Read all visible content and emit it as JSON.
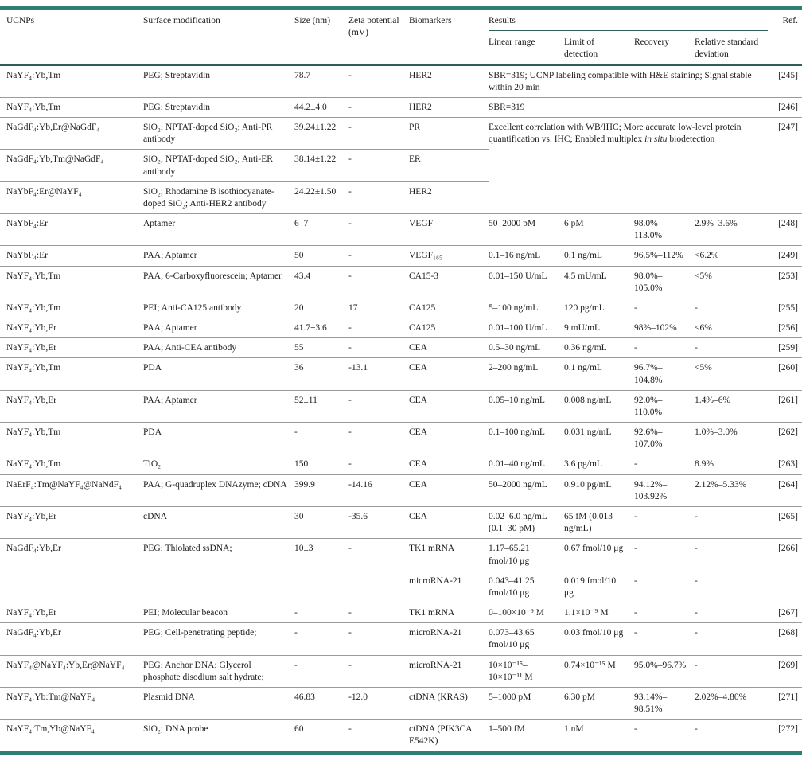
{
  "table": {
    "accent_color": "#2e7e74",
    "header": {
      "ucnps": "UCNPs",
      "surface": "Surface modification",
      "size": "Size (nm)",
      "zeta": "Zeta potential (mV)",
      "biomarkers": "Biomarkers",
      "results": "Results",
      "sub": [
        "Linear range",
        "Limit of detection",
        "Recovery",
        "Relative standard deviation"
      ],
      "ref": "Ref."
    },
    "rows": [
      [
        {
          "c": "ucnps",
          "t": "NaYF₄:Yb,Tm"
        },
        {
          "c": "surface",
          "t": "PEG; Streptavidin"
        },
        {
          "c": "size",
          "t": "78.7"
        },
        {
          "c": "zeta",
          "t": "-"
        },
        {
          "c": "biomarker",
          "t": "HER2"
        },
        {
          "c": "results",
          "cs": 4,
          "t": "SBR=319; UCNP labeling compatible with H&E staining; Signal stable within 20 min"
        },
        {
          "c": "ref",
          "t": "[245]"
        }
      ],
      [
        {
          "c": "ucnps",
          "t": "NaYF₄:Yb,Tm"
        },
        {
          "c": "surface",
          "t": "PEG; Streptavidin"
        },
        {
          "c": "size",
          "t": "44.2±4.0"
        },
        {
          "c": "zeta",
          "t": "-"
        },
        {
          "c": "biomarker",
          "t": "HER2"
        },
        {
          "c": "results",
          "cs": 4,
          "t": "SBR=319"
        },
        {
          "c": "ref",
          "t": "[246]"
        }
      ],
      [
        {
          "c": "ucnps",
          "t": "NaGdF₄:Yb,Er@NaGdF₄"
        },
        {
          "c": "surface",
          "t": "SiO₂; NPTAT-doped SiO₂; Anti-PR antibody"
        },
        {
          "c": "size",
          "t": "39.24±1.22"
        },
        {
          "c": "zeta",
          "t": "-"
        },
        {
          "c": "biomarker",
          "t": "PR"
        },
        {
          "c": "results",
          "cs": 4,
          "rs": 3,
          "parts": [
            {
              "t": "Excellent correlation with WB/IHC; More accurate low-level protein quantification vs. IHC; Enabled multiplex "
            },
            {
              "t": "in situ",
              "it": true
            },
            {
              "t": " biodetection"
            }
          ]
        },
        {
          "c": "ref",
          "rs": 3,
          "t": "[247]"
        }
      ],
      [
        {
          "c": "ucnps",
          "t": "NaGdF₄:Yb,Tm@NaGdF₄"
        },
        {
          "c": "surface",
          "t": "SiO₂; NPTAT-doped SiO₂; Anti-ER antibody"
        },
        {
          "c": "size",
          "t": "38.14±1.22"
        },
        {
          "c": "zeta",
          "t": "-"
        },
        {
          "c": "biomarker",
          "t": "ER"
        }
      ],
      [
        {
          "c": "ucnps",
          "t": "NaYbF₄:Er@NaYF₄"
        },
        {
          "c": "surface",
          "t": "SiO₂; Rhodamine B isothiocyanate-doped SiO₂; Anti-HER2 antibody"
        },
        {
          "c": "size",
          "t": "24.22±1.50"
        },
        {
          "c": "zeta",
          "t": "-"
        },
        {
          "c": "biomarker",
          "t": "HER2"
        }
      ],
      [
        {
          "c": "ucnps",
          "t": "NaYbF₄:Er"
        },
        {
          "c": "surface",
          "t": "Aptamer"
        },
        {
          "c": "size",
          "t": "6–7"
        },
        {
          "c": "zeta",
          "t": "-"
        },
        {
          "c": "biomarker",
          "t": "VEGF"
        },
        {
          "c": "linear",
          "t": "50–2000 pM"
        },
        {
          "c": "lod",
          "t": "6 pM"
        },
        {
          "c": "recovery",
          "t": "98.0%–113.0%"
        },
        {
          "c": "rsd",
          "t": "2.9%–3.6%"
        },
        {
          "c": "ref",
          "t": "[248]"
        }
      ],
      [
        {
          "c": "ucnps",
          "t": "NaYbF₄:Er"
        },
        {
          "c": "surface",
          "t": "PAA; Aptamer"
        },
        {
          "c": "size",
          "t": "50"
        },
        {
          "c": "zeta",
          "t": "-"
        },
        {
          "c": "biomarker",
          "t": "VEGF₁₆₅"
        },
        {
          "c": "linear",
          "t": "0.1–16 ng/mL"
        },
        {
          "c": "lod",
          "t": "0.1 ng/mL"
        },
        {
          "c": "recovery",
          "t": "96.5%–112%"
        },
        {
          "c": "rsd",
          "t": "<6.2%"
        },
        {
          "c": "ref",
          "t": "[249]"
        }
      ],
      [
        {
          "c": "ucnps",
          "t": "NaYF₄:Yb,Tm"
        },
        {
          "c": "surface",
          "t": "PAA; 6-Carboxyfluorescein; Aptamer"
        },
        {
          "c": "size",
          "t": "43.4"
        },
        {
          "c": "zeta",
          "t": "-"
        },
        {
          "c": "biomarker",
          "t": "CA15-3"
        },
        {
          "c": "linear",
          "t": "0.01–150 U/mL"
        },
        {
          "c": "lod",
          "t": "4.5 mU/mL"
        },
        {
          "c": "recovery",
          "t": "98.0%–105.0%"
        },
        {
          "c": "rsd",
          "t": "<5%"
        },
        {
          "c": "ref",
          "t": "[253]"
        }
      ],
      [
        {
          "c": "ucnps",
          "t": "NaYF₄:Yb,Tm"
        },
        {
          "c": "surface",
          "t": "PEI; Anti-CA125 antibody"
        },
        {
          "c": "size",
          "t": "20"
        },
        {
          "c": "zeta",
          "t": "17"
        },
        {
          "c": "biomarker",
          "t": "CA125"
        },
        {
          "c": "linear",
          "t": "5–100 ng/mL"
        },
        {
          "c": "lod",
          "t": "120 pg/mL"
        },
        {
          "c": "recovery",
          "t": "-"
        },
        {
          "c": "rsd",
          "t": "-"
        },
        {
          "c": "ref",
          "t": "[255]"
        }
      ],
      [
        {
          "c": "ucnps",
          "t": "NaYF₄:Yb,Er"
        },
        {
          "c": "surface",
          "t": "PAA; Aptamer"
        },
        {
          "c": "size",
          "t": "41.7±3.6"
        },
        {
          "c": "zeta",
          "t": "-"
        },
        {
          "c": "biomarker",
          "t": "CA125"
        },
        {
          "c": "linear",
          "t": "0.01–100 U/mL"
        },
        {
          "c": "lod",
          "t": "9 mU/mL"
        },
        {
          "c": "recovery",
          "t": "98%–102%"
        },
        {
          "c": "rsd",
          "t": "<6%"
        },
        {
          "c": "ref",
          "t": "[256]"
        }
      ],
      [
        {
          "c": "ucnps",
          "t": "NaYF₄:Yb,Er"
        },
        {
          "c": "surface",
          "t": "PAA; Anti-CEA antibody"
        },
        {
          "c": "size",
          "t": "55"
        },
        {
          "c": "zeta",
          "t": "-"
        },
        {
          "c": "biomarker",
          "t": "CEA"
        },
        {
          "c": "linear",
          "t": "0.5–30 ng/mL"
        },
        {
          "c": "lod",
          "t": "0.36 ng/mL"
        },
        {
          "c": "recovery",
          "t": "-"
        },
        {
          "c": "rsd",
          "t": "-"
        },
        {
          "c": "ref",
          "t": "[259]"
        }
      ],
      [
        {
          "c": "ucnps",
          "t": "NaYF₄:Yb,Tm"
        },
        {
          "c": "surface",
          "t": "PDA"
        },
        {
          "c": "size",
          "t": "36"
        },
        {
          "c": "zeta",
          "t": "-13.1"
        },
        {
          "c": "biomarker",
          "t": "CEA"
        },
        {
          "c": "linear",
          "t": "2–200 ng/mL"
        },
        {
          "c": "lod",
          "t": "0.1 ng/mL"
        },
        {
          "c": "recovery",
          "t": "96.7%–104.8%"
        },
        {
          "c": "rsd",
          "t": "<5%"
        },
        {
          "c": "ref",
          "t": "[260]"
        }
      ],
      [
        {
          "c": "ucnps",
          "t": "NaYF₄:Yb,Er"
        },
        {
          "c": "surface",
          "t": "PAA; Aptamer"
        },
        {
          "c": "size",
          "t": "52±11"
        },
        {
          "c": "zeta",
          "t": "-"
        },
        {
          "c": "biomarker",
          "t": "CEA"
        },
        {
          "c": "linear",
          "t": "0.05–10 ng/mL"
        },
        {
          "c": "lod",
          "t": "0.008 ng/mL"
        },
        {
          "c": "recovery",
          "t": "92.0%–110.0%"
        },
        {
          "c": "rsd",
          "t": "1.4%–6%"
        },
        {
          "c": "ref",
          "t": "[261]"
        }
      ],
      [
        {
          "c": "ucnps",
          "t": "NaYF₄:Yb,Tm"
        },
        {
          "c": "surface",
          "t": "PDA"
        },
        {
          "c": "size",
          "t": "-"
        },
        {
          "c": "zeta",
          "t": "-"
        },
        {
          "c": "biomarker",
          "t": "CEA"
        },
        {
          "c": "linear",
          "t": "0.1–100 ng/mL"
        },
        {
          "c": "lod",
          "t": "0.031 ng/mL"
        },
        {
          "c": "recovery",
          "t": "92.6%–107.0%"
        },
        {
          "c": "rsd",
          "t": "1.0%–3.0%"
        },
        {
          "c": "ref",
          "t": "[262]"
        }
      ],
      [
        {
          "c": "ucnps",
          "t": "NaYF₄:Yb,Tm"
        },
        {
          "c": "surface",
          "t": "TiO₂"
        },
        {
          "c": "size",
          "t": "150"
        },
        {
          "c": "zeta",
          "t": "-"
        },
        {
          "c": "biomarker",
          "t": "CEA"
        },
        {
          "c": "linear",
          "t": "0.01–40 ng/mL"
        },
        {
          "c": "lod",
          "t": "3.6 pg/mL"
        },
        {
          "c": "recovery",
          "t": "-"
        },
        {
          "c": "rsd",
          "t": "8.9%"
        },
        {
          "c": "ref",
          "t": "[263]"
        }
      ],
      [
        {
          "c": "ucnps",
          "t": "NaErF₄:Tm@NaYF₄@NaNdF₄"
        },
        {
          "c": "surface",
          "t": "PAA; G-quadruplex DNAzyme; cDNA"
        },
        {
          "c": "size",
          "t": "399.9"
        },
        {
          "c": "zeta",
          "t": "-14.16"
        },
        {
          "c": "biomarker",
          "t": "CEA"
        },
        {
          "c": "linear",
          "t": "50–2000 ng/mL"
        },
        {
          "c": "lod",
          "t": "0.910 pg/mL"
        },
        {
          "c": "recovery",
          "t": "94.12%–103.92%"
        },
        {
          "c": "rsd",
          "t": "2.12%–5.33%"
        },
        {
          "c": "ref",
          "t": "[264]"
        }
      ],
      [
        {
          "c": "ucnps",
          "t": "NaYF₄:Yb,Er"
        },
        {
          "c": "surface",
          "t": "cDNA"
        },
        {
          "c": "size",
          "t": "30"
        },
        {
          "c": "zeta",
          "t": "-35.6"
        },
        {
          "c": "biomarker",
          "t": "CEA"
        },
        {
          "c": "linear",
          "t": "0.02–6.0 ng/mL (0.1–30 pM)"
        },
        {
          "c": "lod",
          "t": "65 fM (0.013 ng/mL)"
        },
        {
          "c": "recovery",
          "t": "-"
        },
        {
          "c": "rsd",
          "t": "-"
        },
        {
          "c": "ref",
          "t": "[265]"
        }
      ],
      [
        {
          "c": "ucnps",
          "rs": 2,
          "t": "NaGdF₄:Yb,Er"
        },
        {
          "c": "surface",
          "rs": 2,
          "t": "PEG; Thiolated ssDNA;"
        },
        {
          "c": "size",
          "rs": 2,
          "t": "10±3"
        },
        {
          "c": "zeta",
          "rs": 2,
          "t": "-"
        },
        {
          "c": "biomarker",
          "t": "TK1 mRNA"
        },
        {
          "c": "linear",
          "t": "1.17–65.21 fmol/10 μg"
        },
        {
          "c": "lod",
          "t": "0.67 fmol/10 μg"
        },
        {
          "c": "recovery",
          "t": "-"
        },
        {
          "c": "rsd",
          "t": "-"
        },
        {
          "c": "ref",
          "rs": 2,
          "t": "[266]"
        }
      ],
      [
        {
          "c": "biomarker",
          "t": "microRNA-21"
        },
        {
          "c": "linear",
          "t": "0.043–41.25 fmol/10 μg"
        },
        {
          "c": "lod",
          "t": "0.019 fmol/10 μg"
        },
        {
          "c": "recovery",
          "t": "-"
        },
        {
          "c": "rsd",
          "t": "-"
        }
      ],
      [
        {
          "c": "ucnps",
          "t": "NaYF₄:Yb,Er"
        },
        {
          "c": "surface",
          "t": "PEI; Molecular beacon"
        },
        {
          "c": "size",
          "t": "-"
        },
        {
          "c": "zeta",
          "t": "-"
        },
        {
          "c": "biomarker",
          "t": "TK1 mRNA"
        },
        {
          "c": "linear",
          "t": "0–100×10⁻⁹ M"
        },
        {
          "c": "lod",
          "t": "1.1×10⁻⁹ M"
        },
        {
          "c": "recovery",
          "t": "-"
        },
        {
          "c": "rsd",
          "t": "-"
        },
        {
          "c": "ref",
          "t": "[267]"
        }
      ],
      [
        {
          "c": "ucnps",
          "t": "NaGdF₄:Yb,Er"
        },
        {
          "c": "surface",
          "t": "PEG; Cell-penetrating peptide;"
        },
        {
          "c": "size",
          "t": "-"
        },
        {
          "c": "zeta",
          "t": "-"
        },
        {
          "c": "biomarker",
          "t": "microRNA-21"
        },
        {
          "c": "linear",
          "t": "0.073–43.65 fmol/10 μg"
        },
        {
          "c": "lod",
          "t": "0.03 fmol/10 μg"
        },
        {
          "c": "recovery",
          "t": "-"
        },
        {
          "c": "rsd",
          "t": "-"
        },
        {
          "c": "ref",
          "t": "[268]"
        }
      ],
      [
        {
          "c": "ucnps",
          "t": "NaYF₄@NaYF₄:Yb,Er@NaYF₄"
        },
        {
          "c": "surface",
          "t": "PEG; Anchor DNA; Glycerol phosphate disodium salt hydrate;"
        },
        {
          "c": "size",
          "t": "-"
        },
        {
          "c": "zeta",
          "t": "-"
        },
        {
          "c": "biomarker",
          "t": "microRNA-21"
        },
        {
          "c": "linear",
          "t": "10×10⁻¹⁵–10×10⁻¹¹ M"
        },
        {
          "c": "lod",
          "t": "0.74×10⁻¹⁵ M"
        },
        {
          "c": "recovery",
          "t": "95.0%–96.7%"
        },
        {
          "c": "rsd",
          "t": "-"
        },
        {
          "c": "ref",
          "t": "[269]"
        }
      ],
      [
        {
          "c": "ucnps",
          "t": "NaYF₄:Yb:Tm@NaYF₄"
        },
        {
          "c": "surface",
          "t": "Plasmid DNA"
        },
        {
          "c": "size",
          "t": "46.83"
        },
        {
          "c": "zeta",
          "t": "-12.0"
        },
        {
          "c": "biomarker",
          "t": "ctDNA (KRAS)"
        },
        {
          "c": "linear",
          "t": "5–1000 pM"
        },
        {
          "c": "lod",
          "t": "6.30 pM"
        },
        {
          "c": "recovery",
          "t": "93.14%–98.51%"
        },
        {
          "c": "rsd",
          "t": "2.02%–4.80%"
        },
        {
          "c": "ref",
          "t": "[271]"
        }
      ],
      [
        {
          "c": "ucnps",
          "t": "NaYF₄:Tm,Yb@NaYF₄"
        },
        {
          "c": "surface",
          "t": "SiO₂; DNA probe"
        },
        {
          "c": "size",
          "t": "60"
        },
        {
          "c": "zeta",
          "t": "-"
        },
        {
          "c": "biomarker",
          "t": "ctDNA (PIK3CA E542K)"
        },
        {
          "c": "linear",
          "t": "1–500 fM"
        },
        {
          "c": "lod",
          "t": "1 nM"
        },
        {
          "c": "recovery",
          "t": "-"
        },
        {
          "c": "rsd",
          "t": "-"
        },
        {
          "c": "ref",
          "t": "[272]"
        }
      ]
    ]
  }
}
